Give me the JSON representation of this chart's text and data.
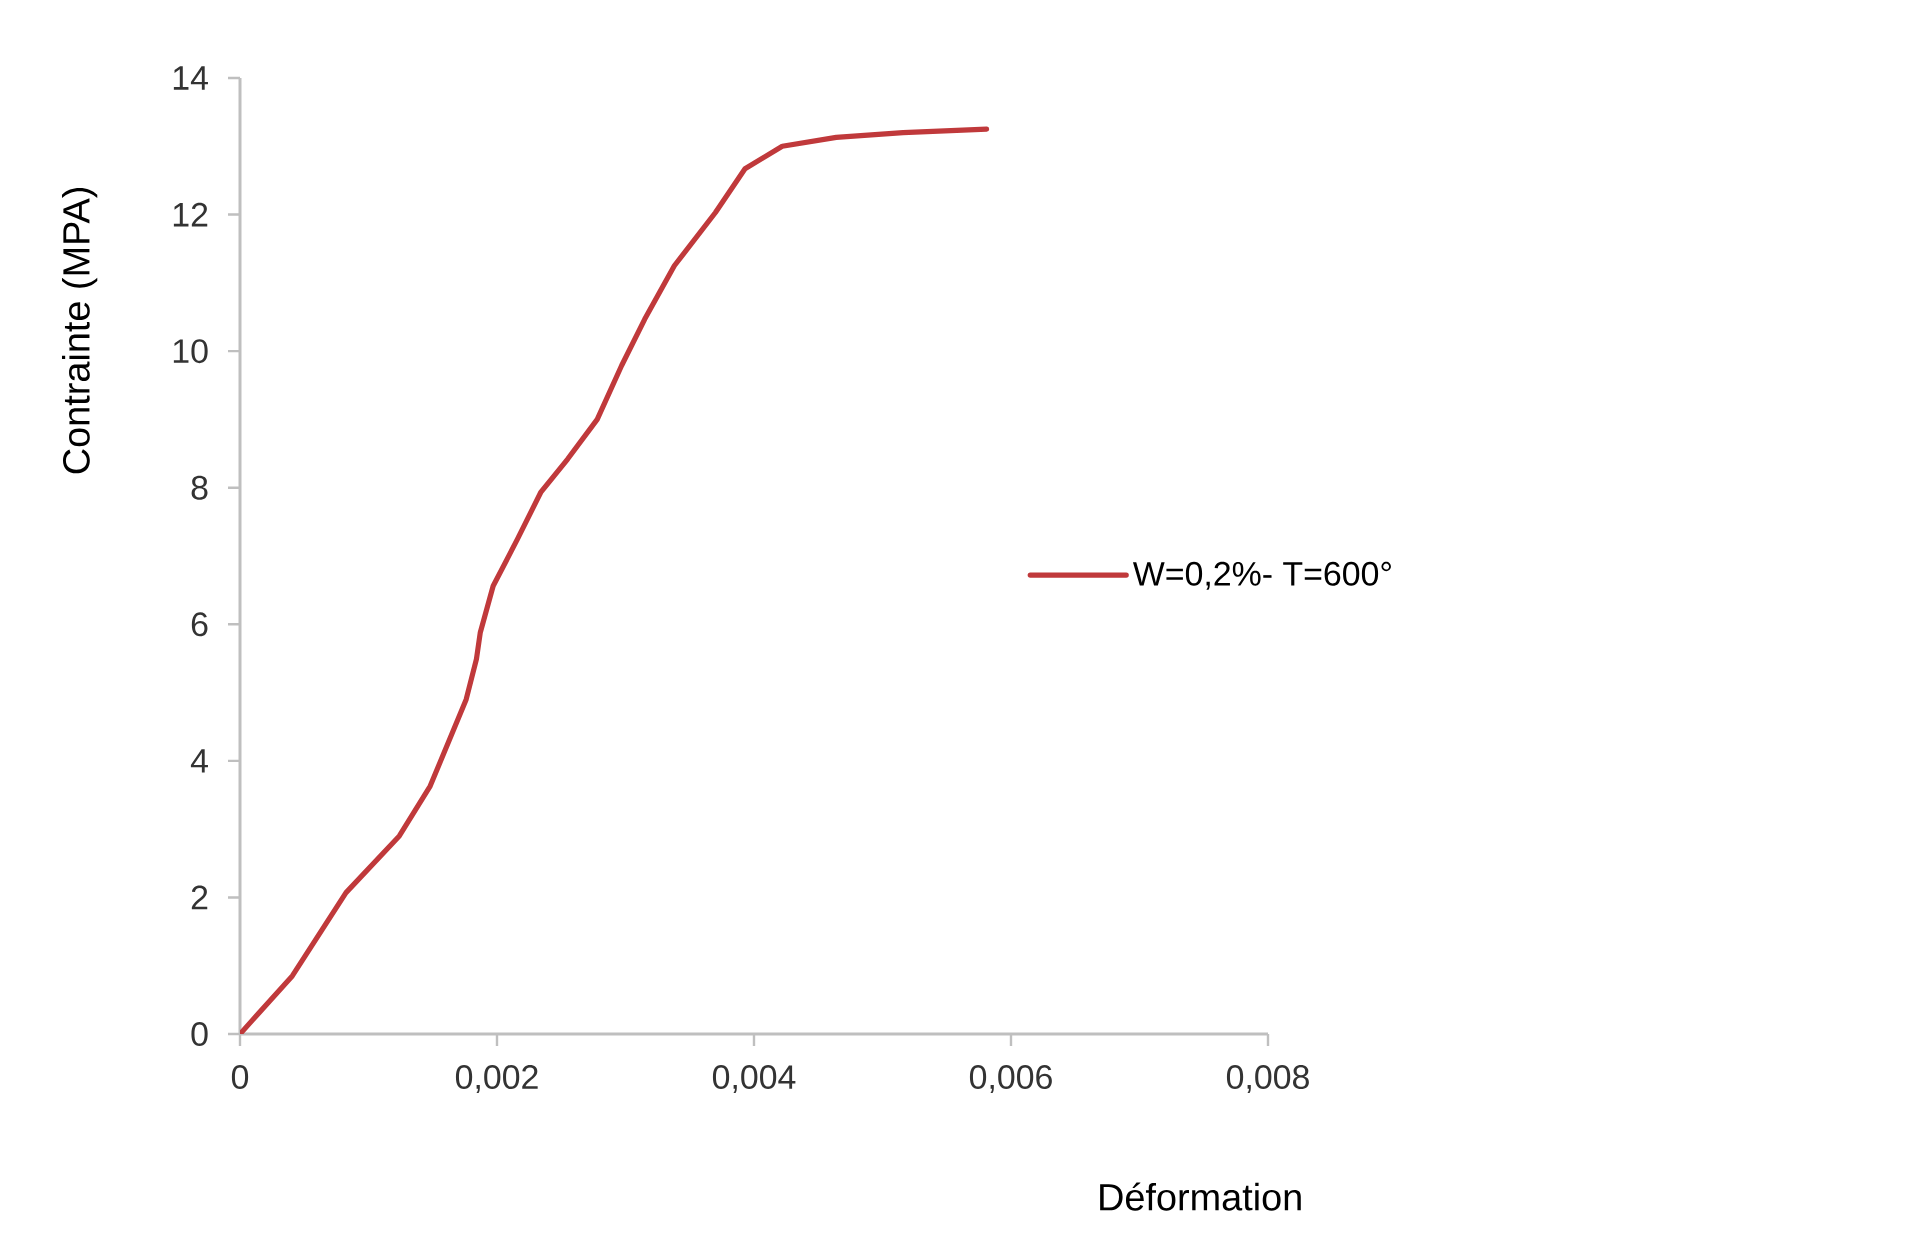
{
  "chart_data": {
    "type": "line",
    "xlabel": "Déformation",
    "ylabel": "Contrainte (MPA)",
    "xlim": [
      0,
      0.008
    ],
    "ylim": [
      0,
      14
    ],
    "xticks": [
      0,
      {
        "value": 0.002,
        "label": "0,002"
      },
      {
        "value": 0.004,
        "label": "0,004"
      },
      {
        "value": 0.006,
        "label": "0,006"
      },
      {
        "value": 0.008,
        "label": "0,008"
      }
    ],
    "yticks": [
      0,
      2,
      4,
      6,
      8,
      10,
      12,
      14
    ],
    "grid": false,
    "legend": "right",
    "marker": "none",
    "line_style": "solid",
    "series": [
      {
        "name": "W=0,2%- T=600°",
        "color": "#c0393b",
        "x": [
          0,
          0.000407,
          0.000825,
          0.00124,
          0.00148,
          0.00176,
          0.00184,
          0.00187,
          0.00197,
          0.00216,
          0.00234,
          0.00255,
          0.00278,
          0.00297,
          0.00315,
          0.00338,
          0.0037,
          0.00393,
          0.00422,
          0.00464,
          0.00516,
          0.00581
        ],
        "values": [
          0,
          0.85,
          2.07,
          2.9,
          3.63,
          4.9,
          5.49,
          5.88,
          6.56,
          7.25,
          7.93,
          8.42,
          9.0,
          9.79,
          10.47,
          11.25,
          12.03,
          12.67,
          13.0,
          13.13,
          13.2,
          13.25
        ]
      }
    ]
  }
}
